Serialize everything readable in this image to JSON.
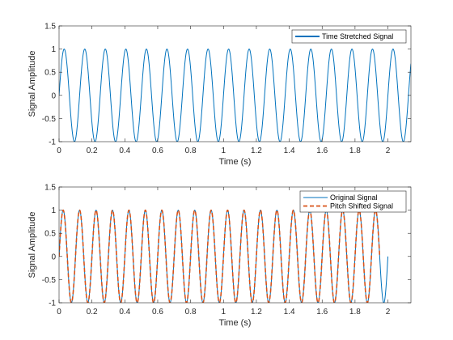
{
  "chart_data": [
    {
      "type": "line",
      "xlabel": "Time (s)",
      "ylabel": "Signal Amplitude",
      "xlim": [
        0,
        2.14
      ],
      "ylim": [
        -1,
        1.5
      ],
      "xticks": [
        "0",
        "0.2",
        "0.4",
        "0.6",
        "0.8",
        "1",
        "1.2",
        "1.4",
        "1.6",
        "1.8",
        "2"
      ],
      "yticks": [
        "-1",
        "-0.5",
        "0",
        "0.5",
        "1",
        "1.5"
      ],
      "grid": false,
      "legend_position": "top-right",
      "series": [
        {
          "name": "Time Stretched Signal",
          "kind": "sine",
          "amplitude": 1,
          "frequency_hz": 8,
          "x_start": 0,
          "x_end": 2.14,
          "color": "#0072BD",
          "line_style": "solid"
        }
      ]
    },
    {
      "type": "line",
      "xlabel": "Time (s)",
      "ylabel": "Signal Amplitude",
      "xlim": [
        0,
        2.14
      ],
      "ylim": [
        -1,
        1.5
      ],
      "xticks": [
        "0",
        "0.2",
        "0.4",
        "0.6",
        "0.8",
        "1",
        "1.2",
        "1.4",
        "1.6",
        "1.8",
        "2"
      ],
      "yticks": [
        "-1",
        "-0.5",
        "0",
        "0.5",
        "1",
        "1.5"
      ],
      "grid": false,
      "legend_position": "top-right",
      "series": [
        {
          "name": "Original Signal",
          "kind": "sine",
          "amplitude": 1,
          "frequency_hz": 10,
          "x_start": 0,
          "x_end": 2,
          "color": "#0072BD",
          "line_style": "solid"
        },
        {
          "name": "Pitch Shifted Signal",
          "kind": "sine",
          "amplitude": 1,
          "frequency_hz": 10,
          "x_start": 0,
          "x_end": 1.95,
          "color": "#D95319",
          "line_style": "dashed"
        }
      ]
    }
  ]
}
